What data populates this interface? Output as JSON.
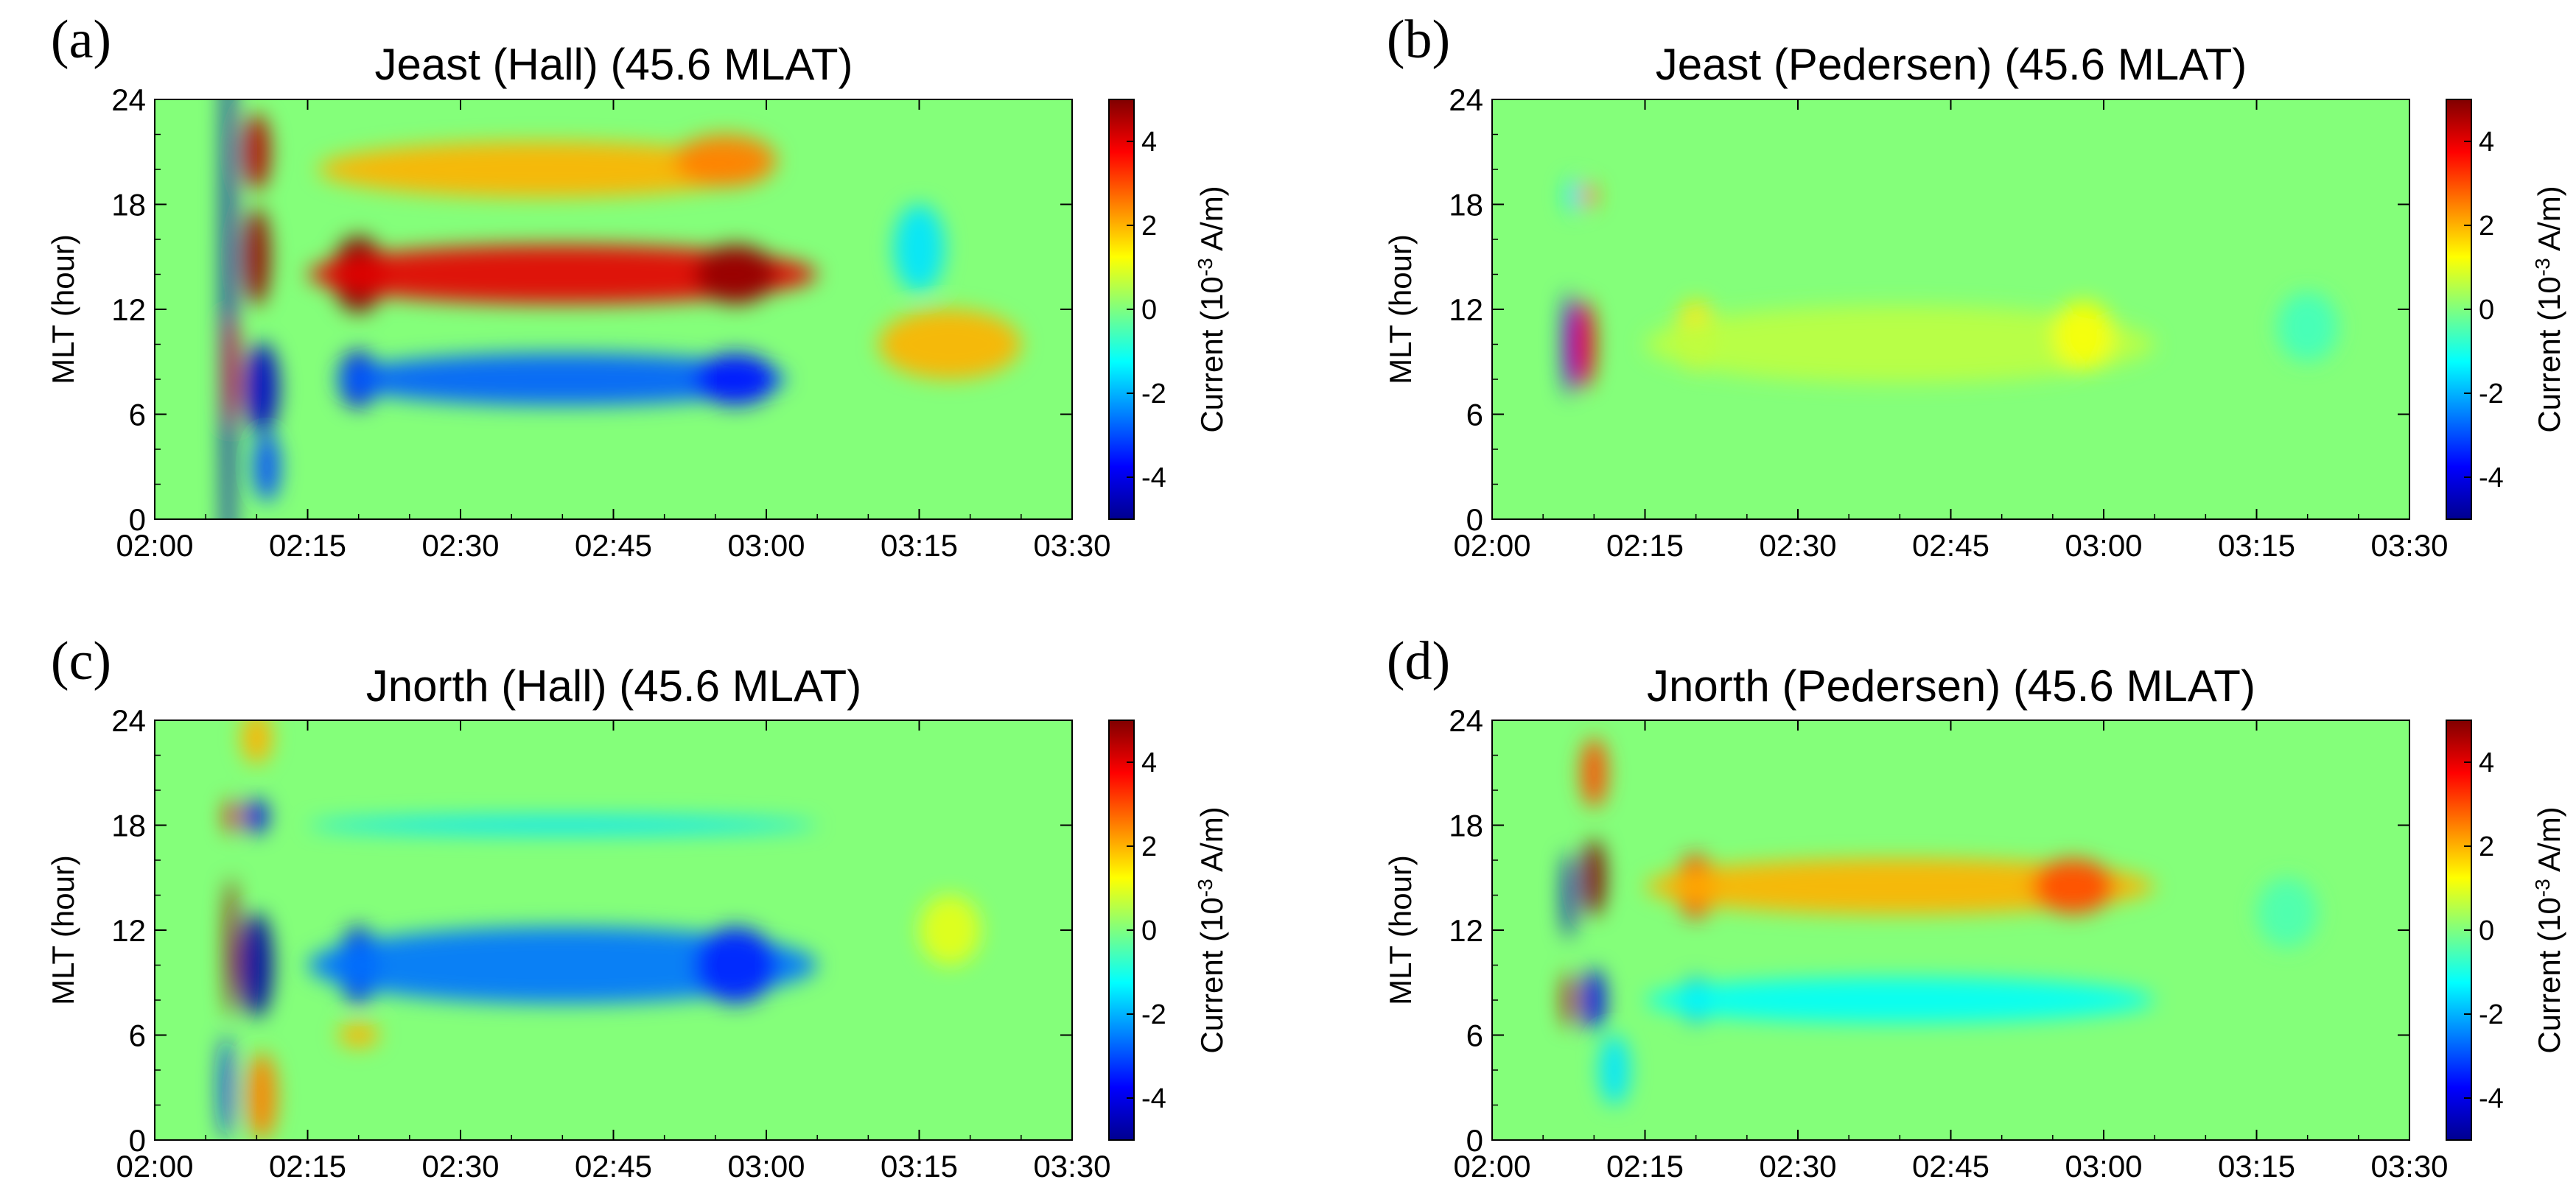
{
  "chart_data": [
    {
      "type": "heatmap",
      "panel_letter": "(a)",
      "title": "Jeast (Hall) (45.6 MLAT)",
      "xlabel": "",
      "ylabel": "MLT (hour)",
      "x_ticks": [
        "02:00",
        "02:15",
        "02:30",
        "02:45",
        "03:00",
        "03:15",
        "03:30"
      ],
      "y_ticks": [
        "0",
        "6",
        "12",
        "18",
        "24"
      ],
      "xlim_minutes_after_0200": [
        0,
        90
      ],
      "ylim": [
        0,
        24
      ],
      "colorbar": {
        "label": "Current (10-3 A/m)",
        "label_prefix": "Current (10",
        "label_exponent": "-3",
        "label_suffix": " A/m)",
        "range": [
          -5,
          5
        ],
        "ticks": [
          "-4",
          "-2",
          "0",
          "2",
          "4"
        ]
      },
      "features": [
        {
          "t": 7.2,
          "mlt": 12,
          "dt": 0.6,
          "dmlt": 22,
          "value": -4.6
        },
        {
          "t": 7.6,
          "mlt": 8.5,
          "dt": 0.6,
          "dmlt": 3,
          "value": 4.2
        },
        {
          "t": 10,
          "mlt": 21,
          "dt": 1.3,
          "dmlt": 2.2,
          "value": 4.5
        },
        {
          "t": 10,
          "mlt": 15,
          "dt": 1.3,
          "dmlt": 2.8,
          "value": 4.8
        },
        {
          "t": 10.5,
          "mlt": 7.5,
          "dt": 1.7,
          "dmlt": 2.6,
          "value": -4.4
        },
        {
          "t": 11,
          "mlt": 3,
          "dt": 1.3,
          "dmlt": 2,
          "value": -3
        },
        {
          "t": 20,
          "mlt": 14,
          "dt": 2.6,
          "dmlt": 2.2,
          "value": 5
        },
        {
          "t": 40,
          "mlt": 14,
          "dt": 25,
          "dmlt": 1.7,
          "value": 4
        },
        {
          "t": 57,
          "mlt": 14,
          "dt": 4,
          "dmlt": 1.7,
          "value": 4.8
        },
        {
          "t": 38,
          "mlt": 20,
          "dt": 22,
          "dmlt": 1.6,
          "value": 2
        },
        {
          "t": 56,
          "mlt": 20.5,
          "dt": 5,
          "dmlt": 1.5,
          "value": 2.5
        },
        {
          "t": 20,
          "mlt": 8,
          "dt": 2,
          "dmlt": 1.6,
          "value": -4
        },
        {
          "t": 40,
          "mlt": 8,
          "dt": 22,
          "dmlt": 1.5,
          "value": -2.8
        },
        {
          "t": 57,
          "mlt": 8,
          "dt": 4,
          "dmlt": 1.5,
          "value": -3.5
        },
        {
          "t": 75,
          "mlt": 15.5,
          "dt": 2.5,
          "dmlt": 2.5,
          "value": -1.5
        },
        {
          "t": 78,
          "mlt": 10,
          "dt": 7,
          "dmlt": 2,
          "value": 2
        }
      ]
    },
    {
      "type": "heatmap",
      "panel_letter": "(b)",
      "title": "Jeast (Pedersen) (45.6 MLAT)",
      "xlabel": "",
      "ylabel": "MLT (hour)",
      "x_ticks": [
        "02:00",
        "02:15",
        "02:30",
        "02:45",
        "03:00",
        "03:15",
        "03:30"
      ],
      "y_ticks": [
        "0",
        "6",
        "12",
        "18",
        "24"
      ],
      "xlim_minutes_after_0200": [
        0,
        90
      ],
      "ylim": [
        0,
        24
      ],
      "colorbar": {
        "label": "Current (10-3 A/m)",
        "label_prefix": "Current (10",
        "label_exponent": "-3",
        "label_suffix": " A/m)",
        "range": [
          -5,
          5
        ],
        "ticks": [
          "-4",
          "-2",
          "0",
          "2",
          "4"
        ]
      },
      "features": [
        {
          "t": 7.5,
          "mlt": 10,
          "dt": 0.6,
          "dmlt": 3,
          "value": -4
        },
        {
          "t": 9,
          "mlt": 10,
          "dt": 1.1,
          "dmlt": 2.5,
          "value": 4
        },
        {
          "t": 8,
          "mlt": 18.5,
          "dt": 0.8,
          "dmlt": 1,
          "value": -1.5
        },
        {
          "t": 9.5,
          "mlt": 18.5,
          "dt": 0.8,
          "dmlt": 0.7,
          "value": 2.5
        },
        {
          "t": 20,
          "mlt": 10.5,
          "dt": 2,
          "dmlt": 2,
          "value": 1.5
        },
        {
          "t": 40,
          "mlt": 10,
          "dt": 25,
          "dmlt": 2.2,
          "value": 0.6
        },
        {
          "t": 58,
          "mlt": 10.5,
          "dt": 3,
          "dmlt": 2,
          "value": 1.2
        },
        {
          "t": 80,
          "mlt": 11,
          "dt": 3,
          "dmlt": 2,
          "value": -0.6
        }
      ]
    },
    {
      "type": "heatmap",
      "panel_letter": "(c)",
      "title": "Jnorth (Hall) (45.6 MLAT)",
      "xlabel": "",
      "ylabel": "MLT (hour)",
      "x_ticks": [
        "02:00",
        "02:15",
        "02:30",
        "02:45",
        "03:00",
        "03:15",
        "03:30"
      ],
      "y_ticks": [
        "0",
        "6",
        "12",
        "18",
        "24"
      ],
      "xlim_minutes_after_0200": [
        0,
        90
      ],
      "ylim": [
        0,
        24
      ],
      "colorbar": {
        "label": "Current (10-3 A/m)",
        "label_prefix": "Current (10",
        "label_exponent": "-3",
        "label_suffix": " A/m)",
        "range": [
          -5,
          5
        ],
        "ticks": [
          "-4",
          "-2",
          "0",
          "2",
          "4"
        ]
      },
      "features": [
        {
          "t": 7.5,
          "mlt": 11,
          "dt": 0.6,
          "dmlt": 4,
          "value": 4.8
        },
        {
          "t": 7.5,
          "mlt": 18.5,
          "dt": 0.6,
          "dmlt": 1,
          "value": 4
        },
        {
          "t": 7,
          "mlt": 3,
          "dt": 0.6,
          "dmlt": 3,
          "value": -3.5
        },
        {
          "t": 10,
          "mlt": 10,
          "dt": 1.6,
          "dmlt": 3,
          "value": -4.8
        },
        {
          "t": 10,
          "mlt": 18.5,
          "dt": 1.1,
          "dmlt": 1,
          "value": -4
        },
        {
          "t": 10.5,
          "mlt": 2.5,
          "dt": 1.5,
          "dmlt": 2.5,
          "value": 2.5
        },
        {
          "t": 10,
          "mlt": 23,
          "dt": 1.5,
          "dmlt": 1.5,
          "value": 2
        },
        {
          "t": 20,
          "mlt": 10,
          "dt": 2,
          "dmlt": 2.2,
          "value": -4
        },
        {
          "t": 40,
          "mlt": 10,
          "dt": 25,
          "dmlt": 2.2,
          "value": -2.6
        },
        {
          "t": 57,
          "mlt": 10,
          "dt": 4,
          "dmlt": 2.2,
          "value": -3.4
        },
        {
          "t": 40,
          "mlt": 18,
          "dt": 25,
          "dmlt": 0.5,
          "value": -1.5
        },
        {
          "t": 20,
          "mlt": 6,
          "dt": 2,
          "dmlt": 0.7,
          "value": 2
        },
        {
          "t": 78,
          "mlt": 12,
          "dt": 3,
          "dmlt": 2,
          "value": 1
        }
      ]
    },
    {
      "type": "heatmap",
      "panel_letter": "(d)",
      "title": "Jnorth (Pedersen) (45.6 MLAT)",
      "xlabel": "",
      "ylabel": "MLT (hour)",
      "x_ticks": [
        "02:00",
        "02:15",
        "02:30",
        "02:45",
        "03:00",
        "03:15",
        "03:30"
      ],
      "y_ticks": [
        "0",
        "6",
        "12",
        "18",
        "24"
      ],
      "xlim_minutes_after_0200": [
        0,
        90
      ],
      "ylim": [
        0,
        24
      ],
      "colorbar": {
        "label": "Current (10-3 A/m)",
        "label_prefix": "Current (10",
        "label_exponent": "-3",
        "label_suffix": " A/m)",
        "range": [
          -5,
          5
        ],
        "ticks": [
          "-4",
          "-2",
          "0",
          "2",
          "4"
        ]
      },
      "features": [
        {
          "t": 7.5,
          "mlt": 14,
          "dt": 0.6,
          "dmlt": 2.5,
          "value": -4.5
        },
        {
          "t": 7.5,
          "mlt": 8,
          "dt": 0.6,
          "dmlt": 1.6,
          "value": 4.5
        },
        {
          "t": 10,
          "mlt": 15,
          "dt": 1.1,
          "dmlt": 2.2,
          "value": 5
        },
        {
          "t": 10,
          "mlt": 21,
          "dt": 1.3,
          "dmlt": 2,
          "value": 3
        },
        {
          "t": 10,
          "mlt": 8,
          "dt": 1.1,
          "dmlt": 1.8,
          "value": -4
        },
        {
          "t": 12,
          "mlt": 4,
          "dt": 1.5,
          "dmlt": 2,
          "value": -1.5
        },
        {
          "t": 20,
          "mlt": 14.5,
          "dt": 2,
          "dmlt": 1.8,
          "value": 3.5
        },
        {
          "t": 40,
          "mlt": 14.5,
          "dt": 25,
          "dmlt": 1.6,
          "value": 2
        },
        {
          "t": 57,
          "mlt": 14.5,
          "dt": 4,
          "dmlt": 1.6,
          "value": 3
        },
        {
          "t": 20,
          "mlt": 8,
          "dt": 1.5,
          "dmlt": 1.3,
          "value": -2
        },
        {
          "t": 40,
          "mlt": 8,
          "dt": 25,
          "dmlt": 1.3,
          "value": -1.2
        },
        {
          "t": 78,
          "mlt": 13,
          "dt": 3,
          "dmlt": 2,
          "value": -0.5
        }
      ]
    }
  ]
}
